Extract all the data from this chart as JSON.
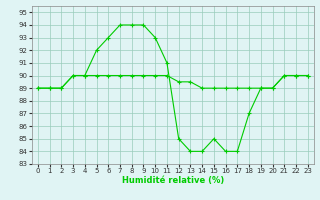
{
  "line1_x": [
    0,
    1,
    2,
    3,
    4,
    5,
    6,
    7,
    8,
    9,
    10,
    11,
    12,
    13,
    14,
    15,
    16,
    17,
    18,
    19,
    20,
    21,
    22,
    23
  ],
  "line1_y": [
    89,
    89,
    89,
    90,
    90,
    92,
    93,
    94,
    94,
    94,
    93,
    91,
    85,
    84,
    84,
    85,
    84,
    84,
    87,
    89,
    89,
    90,
    90,
    90
  ],
  "line2_x": [
    0,
    1,
    2,
    3,
    4,
    5,
    6,
    7,
    8,
    9,
    10,
    11,
    12,
    13,
    14,
    15,
    16,
    17,
    18,
    19,
    20,
    21,
    22,
    23
  ],
  "line2_y": [
    89,
    89,
    89,
    90,
    90,
    90,
    90,
    90,
    90,
    90,
    90,
    90,
    89.5,
    89.5,
    89,
    89,
    89,
    89,
    89,
    89,
    89,
    90,
    90,
    90
  ],
  "line_color": "#00cc00",
  "bg_color": "#e0f4f4",
  "grid_color": "#99ccbb",
  "xlabel": "Humidité relative (%)",
  "xlim": [
    -0.5,
    23.5
  ],
  "ylim": [
    83,
    95.5
  ],
  "yticks": [
    83,
    84,
    85,
    86,
    87,
    88,
    89,
    90,
    91,
    92,
    93,
    94,
    95
  ],
  "xticks": [
    0,
    1,
    2,
    3,
    4,
    5,
    6,
    7,
    8,
    9,
    10,
    11,
    12,
    13,
    14,
    15,
    16,
    17,
    18,
    19,
    20,
    21,
    22,
    23
  ]
}
